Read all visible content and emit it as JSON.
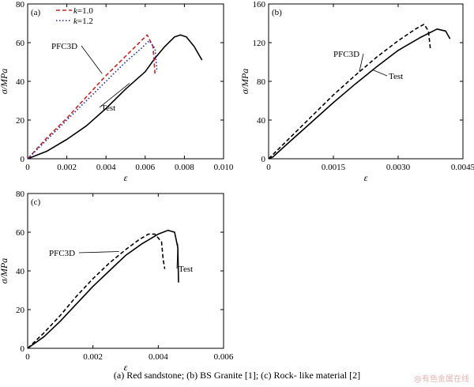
{
  "caption": "(a)    Red sandstone;  (b)  BS  Granite  [1];  (c)  Rock- like material [2]",
  "watermark": "@有色金属在线",
  "colors": {
    "test": "#000000",
    "pfc3d": "#000000",
    "k1": "#cc2222",
    "k12": "#2222aa"
  },
  "chart_data": [
    {
      "type": "line",
      "panel": "(a)",
      "xlabel": "ε",
      "ylabel": "σ/MPa",
      "xlim": [
        0,
        0.01
      ],
      "ylim": [
        0,
        80
      ],
      "xticks": [
        0,
        0.002,
        0.004,
        0.006,
        0.008,
        0.01
      ],
      "xtick_labels": [
        "0",
        "0.002",
        "0.004",
        "0.006",
        "0.008",
        "0.010"
      ],
      "yticks": [
        0,
        20,
        40,
        60,
        80
      ],
      "ytick_labels": [
        "0",
        "20",
        "40",
        "60",
        "80"
      ],
      "legend": {
        "position": "top-left",
        "entries": [
          "k=1.0",
          "k=1.2"
        ]
      },
      "annotations": [
        {
          "text": "PFC3D",
          "target_series": "k=1.0"
        },
        {
          "text": "Test",
          "target_series": "Test"
        }
      ],
      "series": [
        {
          "name": "Test",
          "style": "solid",
          "color_key": "test",
          "points": [
            [
              0,
              0
            ],
            [
              0.0005,
              2
            ],
            [
              0.001,
              4
            ],
            [
              0.0015,
              7
            ],
            [
              0.002,
              10
            ],
            [
              0.003,
              17
            ],
            [
              0.004,
              26
            ],
            [
              0.005,
              36
            ],
            [
              0.006,
              45
            ],
            [
              0.0065,
              52
            ],
            [
              0.007,
              58
            ],
            [
              0.0075,
              63
            ],
            [
              0.0078,
              64
            ],
            [
              0.0081,
              63
            ],
            [
              0.0085,
              58
            ],
            [
              0.0089,
              51
            ]
          ]
        },
        {
          "name": "k=1.0",
          "style": "dashed",
          "color_key": "k1",
          "points": [
            [
              0,
              0
            ],
            [
              0.001,
              11
            ],
            [
              0.002,
              21
            ],
            [
              0.003,
              32
            ],
            [
              0.004,
              43
            ],
            [
              0.005,
              53
            ],
            [
              0.0057,
              60
            ],
            [
              0.0061,
              64
            ],
            [
              0.0064,
              58
            ],
            [
              0.0065,
              44
            ]
          ]
        },
        {
          "name": "k=1.2",
          "style": "dotted",
          "color_key": "k12",
          "points": [
            [
              0,
              0
            ],
            [
              0.001,
              10
            ],
            [
              0.002,
              20
            ],
            [
              0.003,
              30
            ],
            [
              0.004,
              40
            ],
            [
              0.005,
              50
            ],
            [
              0.0058,
              57
            ],
            [
              0.0062,
              61
            ],
            [
              0.0065,
              57
            ],
            [
              0.0066,
              45
            ]
          ]
        }
      ]
    },
    {
      "type": "line",
      "panel": "(b)",
      "xlabel": "ε",
      "ylabel": "σ/MPa",
      "xlim": [
        0,
        0.0045
      ],
      "ylim": [
        0,
        160
      ],
      "xticks": [
        0,
        0.0015,
        0.003,
        0.0045
      ],
      "xtick_labels": [
        "0",
        "0.0015",
        "0.0030",
        "0.0045"
      ],
      "yticks": [
        0,
        40,
        80,
        120,
        160
      ],
      "ytick_labels": [
        "0",
        "40",
        "80",
        "120",
        "160"
      ],
      "annotations": [
        {
          "text": "PFC3D",
          "target_series": "PFC3D"
        },
        {
          "text": "Test",
          "target_series": "Test"
        }
      ],
      "series": [
        {
          "name": "Test",
          "style": "solid",
          "color_key": "test",
          "points": [
            [
              0,
              0
            ],
            [
              0.0001,
              2
            ],
            [
              0.0005,
              18
            ],
            [
              0.001,
              38
            ],
            [
              0.0015,
              58
            ],
            [
              0.002,
              77
            ],
            [
              0.0025,
              95
            ],
            [
              0.003,
              112
            ],
            [
              0.0035,
              125
            ],
            [
              0.0039,
              134
            ],
            [
              0.0041,
              132
            ],
            [
              0.0042,
              124
            ]
          ]
        },
        {
          "name": "PFC3D",
          "style": "dashed",
          "color_key": "pfc3d",
          "points": [
            [
              0,
              0
            ],
            [
              0.0005,
              22
            ],
            [
              0.001,
              44
            ],
            [
              0.0015,
              66
            ],
            [
              0.002,
              86
            ],
            [
              0.0025,
              105
            ],
            [
              0.003,
              122
            ],
            [
              0.0034,
              134
            ],
            [
              0.0036,
              139
            ],
            [
              0.0037,
              132
            ],
            [
              0.00375,
              112
            ]
          ]
        }
      ]
    },
    {
      "type": "line",
      "panel": "(c)",
      "xlabel": "ε",
      "ylabel": "σ/MPa",
      "xlim": [
        0,
        0.006
      ],
      "ylim": [
        0,
        80
      ],
      "xticks": [
        0,
        0.002,
        0.004,
        0.006
      ],
      "xtick_labels": [
        "0",
        "0.002",
        "0.004",
        "0.006"
      ],
      "yticks": [
        0,
        20,
        40,
        60,
        80
      ],
      "ytick_labels": [
        "0",
        "20",
        "40",
        "60",
        "80"
      ],
      "annotations": [
        {
          "text": "PFC3D",
          "target_series": "PFC3D"
        },
        {
          "text": "Test",
          "target_series": "Test"
        }
      ],
      "series": [
        {
          "name": "Test",
          "style": "solid",
          "color_key": "test",
          "points": [
            [
              0,
              0
            ],
            [
              0.0005,
              6
            ],
            [
              0.001,
              14
            ],
            [
              0.0015,
              23
            ],
            [
              0.002,
              32
            ],
            [
              0.0025,
              40
            ],
            [
              0.003,
              48
            ],
            [
              0.0035,
              54
            ],
            [
              0.004,
              59
            ],
            [
              0.0043,
              61
            ],
            [
              0.0045,
              60
            ],
            [
              0.0046,
              52
            ],
            [
              0.00462,
              34
            ]
          ]
        },
        {
          "name": "PFC3D",
          "style": "dashed",
          "color_key": "pfc3d",
          "points": [
            [
              0,
              0
            ],
            [
              0.0005,
              8
            ],
            [
              0.001,
              17
            ],
            [
              0.0015,
              27
            ],
            [
              0.002,
              36
            ],
            [
              0.0025,
              44
            ],
            [
              0.003,
              51
            ],
            [
              0.0034,
              56
            ],
            [
              0.0037,
              59
            ],
            [
              0.0039,
              59
            ],
            [
              0.0041,
              55
            ],
            [
              0.00415,
              46
            ],
            [
              0.0042,
              41
            ]
          ]
        }
      ]
    }
  ]
}
